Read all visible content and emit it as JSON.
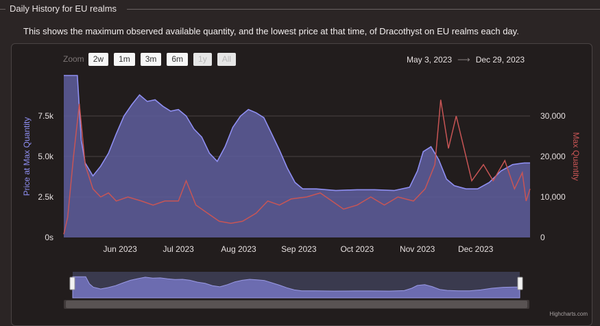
{
  "section": {
    "title": "Daily History for EU realms"
  },
  "description": "This shows the maximum observed available quantity, and the lowest price at that time, of Dracothyst on EU realms each day.",
  "range_selector": {
    "zoom_label": "Zoom",
    "buttons": [
      {
        "label": "2w",
        "enabled": true
      },
      {
        "label": "1m",
        "enabled": true
      },
      {
        "label": "3m",
        "enabled": true
      },
      {
        "label": "6m",
        "enabled": true
      },
      {
        "label": "1y",
        "enabled": false
      },
      {
        "label": "All",
        "enabled": false
      }
    ]
  },
  "date_range": {
    "from": "May 3, 2023",
    "arrow": "⟶",
    "to": "Dec 29, 2023"
  },
  "credits": "Highcharts.com",
  "colors": {
    "price_line": "#8f8ff2",
    "price_fill": "#5e5e9e",
    "quantity_line": "#c85555",
    "grid": "#4a4444",
    "left_axis_title": "#8f8ff2",
    "right_axis_title": "#c85555"
  },
  "chart_data": {
    "type": "area",
    "x_range": [
      "2023-05-03",
      "2023-12-29"
    ],
    "x_ticks": [
      {
        "date": "2023-06-01",
        "label": "Jun 2023"
      },
      {
        "date": "2023-07-01",
        "label": "Jul 2023"
      },
      {
        "date": "2023-08-01",
        "label": "Aug 2023"
      },
      {
        "date": "2023-09-01",
        "label": "Sep 2023"
      },
      {
        "date": "2023-10-01",
        "label": "Oct 2023"
      },
      {
        "date": "2023-11-01",
        "label": "Nov 2023"
      },
      {
        "date": "2023-12-01",
        "label": "Dec 2023"
      }
    ],
    "y_left": {
      "title": "Price at Max Quantity",
      "min": 0,
      "max": 10000,
      "ticks": [
        0,
        2500,
        5000,
        7500
      ],
      "tick_labels": [
        "0s",
        "2.5k",
        "5.0k",
        "7.5k"
      ]
    },
    "y_right": {
      "title": "Max Quantity",
      "min": 0,
      "max": 40000,
      "ticks": [
        0,
        10000,
        20000,
        30000
      ],
      "tick_labels": [
        "0",
        "10,000",
        "20,000",
        "30,000"
      ]
    },
    "grid": true,
    "series": [
      {
        "name": "Price at Max Quantity",
        "axis": "left",
        "type": "area",
        "points": [
          [
            "2023-05-03",
            10000
          ],
          [
            "2023-05-10",
            10000
          ],
          [
            "2023-05-12",
            6000
          ],
          [
            "2023-05-14",
            4600
          ],
          [
            "2023-05-18",
            3800
          ],
          [
            "2023-05-22",
            4400
          ],
          [
            "2023-05-26",
            5200
          ],
          [
            "2023-05-30",
            6400
          ],
          [
            "2023-06-03",
            7500
          ],
          [
            "2023-06-07",
            8200
          ],
          [
            "2023-06-11",
            8800
          ],
          [
            "2023-06-15",
            8400
          ],
          [
            "2023-06-19",
            8500
          ],
          [
            "2023-06-23",
            8100
          ],
          [
            "2023-06-27",
            7800
          ],
          [
            "2023-07-01",
            7900
          ],
          [
            "2023-07-05",
            7500
          ],
          [
            "2023-07-09",
            6700
          ],
          [
            "2023-07-13",
            6200
          ],
          [
            "2023-07-17",
            5200
          ],
          [
            "2023-07-21",
            4700
          ],
          [
            "2023-07-25",
            5600
          ],
          [
            "2023-07-29",
            6800
          ],
          [
            "2023-08-02",
            7500
          ],
          [
            "2023-08-06",
            7900
          ],
          [
            "2023-08-10",
            7700
          ],
          [
            "2023-08-14",
            7400
          ],
          [
            "2023-08-18",
            6400
          ],
          [
            "2023-08-22",
            5400
          ],
          [
            "2023-08-26",
            4300
          ],
          [
            "2023-08-30",
            3400
          ],
          [
            "2023-09-03",
            3000
          ],
          [
            "2023-09-10",
            3000
          ],
          [
            "2023-09-20",
            2900
          ],
          [
            "2023-10-01",
            2950
          ],
          [
            "2023-10-10",
            2950
          ],
          [
            "2023-10-20",
            2900
          ],
          [
            "2023-10-28",
            3100
          ],
          [
            "2023-11-01",
            4100
          ],
          [
            "2023-11-04",
            5300
          ],
          [
            "2023-11-08",
            5600
          ],
          [
            "2023-11-12",
            4800
          ],
          [
            "2023-11-16",
            3600
          ],
          [
            "2023-11-20",
            3200
          ],
          [
            "2023-11-26",
            3000
          ],
          [
            "2023-12-02",
            3000
          ],
          [
            "2023-12-08",
            3400
          ],
          [
            "2023-12-14",
            4100
          ],
          [
            "2023-12-20",
            4500
          ],
          [
            "2023-12-26",
            4600
          ],
          [
            "2023-12-29",
            4600
          ]
        ]
      },
      {
        "name": "Max Quantity",
        "axis": "right",
        "type": "line",
        "points": [
          [
            "2023-05-03",
            800
          ],
          [
            "2023-05-05",
            5000
          ],
          [
            "2023-05-08",
            20000
          ],
          [
            "2023-05-11",
            33000
          ],
          [
            "2023-05-14",
            18000
          ],
          [
            "2023-05-18",
            12000
          ],
          [
            "2023-05-22",
            10000
          ],
          [
            "2023-05-26",
            11000
          ],
          [
            "2023-05-30",
            9000
          ],
          [
            "2023-06-05",
            10000
          ],
          [
            "2023-06-12",
            9000
          ],
          [
            "2023-06-18",
            8000
          ],
          [
            "2023-06-24",
            9000
          ],
          [
            "2023-07-01",
            9000
          ],
          [
            "2023-07-05",
            14000
          ],
          [
            "2023-07-10",
            8000
          ],
          [
            "2023-07-16",
            6000
          ],
          [
            "2023-07-22",
            4000
          ],
          [
            "2023-07-28",
            3500
          ],
          [
            "2023-08-03",
            4000
          ],
          [
            "2023-08-10",
            6000
          ],
          [
            "2023-08-16",
            9000
          ],
          [
            "2023-08-22",
            8000
          ],
          [
            "2023-08-28",
            9500
          ],
          [
            "2023-09-05",
            10000
          ],
          [
            "2023-09-12",
            11000
          ],
          [
            "2023-09-18",
            9000
          ],
          [
            "2023-09-24",
            7000
          ],
          [
            "2023-10-01",
            8000
          ],
          [
            "2023-10-08",
            10000
          ],
          [
            "2023-10-15",
            8000
          ],
          [
            "2023-10-22",
            10000
          ],
          [
            "2023-10-30",
            9000
          ],
          [
            "2023-11-05",
            12000
          ],
          [
            "2023-11-10",
            18000
          ],
          [
            "2023-11-13",
            34000
          ],
          [
            "2023-11-17",
            22000
          ],
          [
            "2023-11-21",
            30000
          ],
          [
            "2023-11-25",
            22000
          ],
          [
            "2023-11-29",
            14000
          ],
          [
            "2023-12-05",
            18000
          ],
          [
            "2023-12-10",
            14000
          ],
          [
            "2023-12-16",
            19000
          ],
          [
            "2023-12-21",
            12000
          ],
          [
            "2023-12-25",
            16000
          ],
          [
            "2023-12-27",
            9000
          ],
          [
            "2023-12-29",
            12000
          ]
        ]
      }
    ]
  }
}
